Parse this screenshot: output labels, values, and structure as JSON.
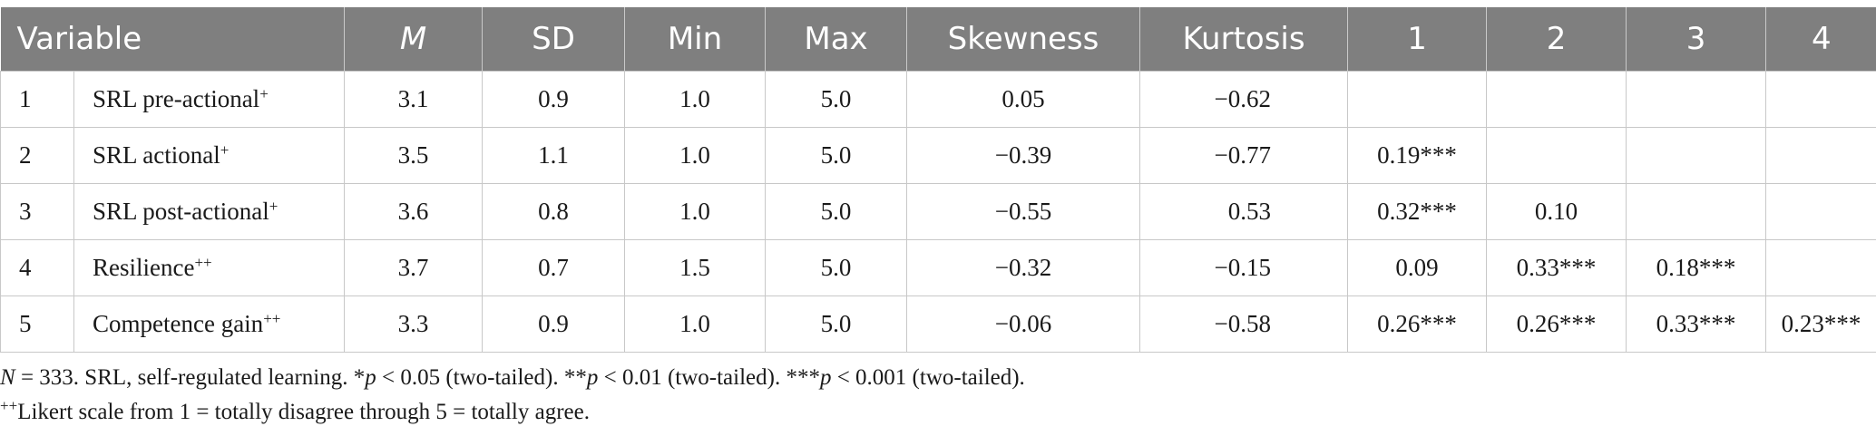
{
  "table": {
    "headers": [
      "Variable",
      "M",
      "SD",
      "Min",
      "Max",
      "Skewness",
      "Kurtosis",
      "1",
      "2",
      "3",
      "4"
    ],
    "rows": [
      {
        "idx": "1",
        "name": "SRL pre-actional",
        "sup": "+",
        "m": "3.1",
        "sd": "0.9",
        "min": "1.0",
        "max": "5.0",
        "skew": "0.05",
        "kurt": "−0.62",
        "c1": "",
        "c2": "",
        "c3": "",
        "c4": ""
      },
      {
        "idx": "2",
        "name": "SRL actional",
        "sup": "+",
        "m": "3.5",
        "sd": "1.1",
        "min": "1.0",
        "max": "5.0",
        "skew": "−0.39",
        "kurt": "−0.77",
        "c1": "0.19***",
        "c2": "",
        "c3": "",
        "c4": ""
      },
      {
        "idx": "3",
        "name": "SRL post-actional",
        "sup": "+",
        "m": "3.6",
        "sd": "0.8",
        "min": "1.0",
        "max": "5.0",
        "skew": "−0.55",
        "kurt": "0.53",
        "c1": "0.32***",
        "c2": "0.10",
        "c3": "",
        "c4": ""
      },
      {
        "idx": "4",
        "name": "Resilience",
        "sup": "++",
        "m": "3.7",
        "sd": "0.7",
        "min": "1.5",
        "max": "5.0",
        "skew": "−0.32",
        "kurt": "−0.15",
        "c1": "0.09",
        "c2": "0.33***",
        "c3": "0.18***",
        "c4": ""
      },
      {
        "idx": "5",
        "name": "Competence gain",
        "sup": "++",
        "m": "3.3",
        "sd": "0.9",
        "min": "1.0",
        "max": "5.0",
        "skew": "−0.06",
        "kurt": "−0.58",
        "c1": "0.26***",
        "c2": "0.26***",
        "c3": "0.33***",
        "c4": "0.23***"
      }
    ]
  },
  "notes": {
    "n_label": "N",
    "n_rest": " = 333. SRL, self-regulated learning. *",
    "p1": "p",
    "p1_rest": " < 0.05 (two-tailed). **",
    "p2": "p",
    "p2_rest": " < 0.01 (two-tailed). ***",
    "p3": "p",
    "p3_rest": " < 0.001 (two-tailed).",
    "likert_sup": "++",
    "likert_text": "Likert scale from 1 = totally disagree through 5 = totally agree."
  }
}
